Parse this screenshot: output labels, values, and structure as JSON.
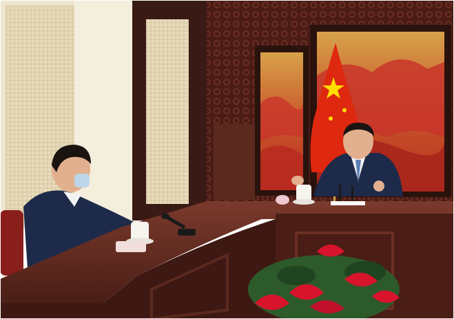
{
  "photo": {
    "palette": {
      "wall": "#efe6cf",
      "wall_panel": "#d9c9a3",
      "wood_dark": "#3a1a14",
      "wood_mid": "#5a2a1f",
      "table_top": "#6b2f24",
      "painting_red": "#c8352a",
      "painting_gold": "#d8a24a",
      "flag_red": "#de2910",
      "flag_star": "#ffde00",
      "suit": "#1e2a4a",
      "shirt": "#f2f2f2",
      "skin": "#e2b08e",
      "hair": "#1a1410",
      "flower_red": "#d8142c",
      "leaf_green": "#2d5a2a",
      "cup_white": "#f6f4ef",
      "mask_blue": "#bcd6e8"
    },
    "icons": [
      "flag-icon",
      "microphone-icon",
      "teacup-icon",
      "flower-icon"
    ]
  }
}
